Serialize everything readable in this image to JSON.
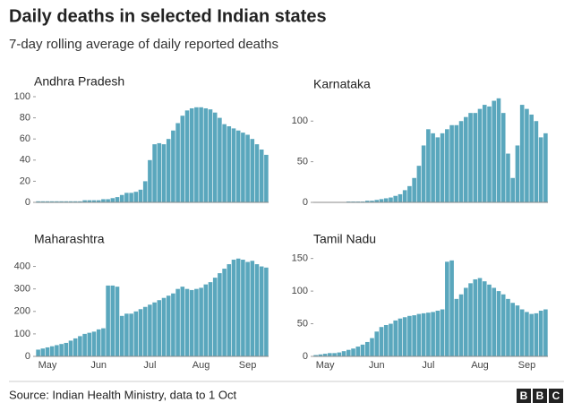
{
  "title": "Daily deaths in selected Indian states",
  "subtitle": "7-day rolling average of daily reported deaths",
  "source": "Source: Indian Health Ministry, data to 1 Oct",
  "logo": [
    "B",
    "B",
    "C"
  ],
  "chart_data": [
    {
      "type": "bar",
      "title": "Andhra Pradesh",
      "color": "#5aa7bd",
      "values": [
        1,
        1,
        1,
        1,
        1,
        1,
        1,
        1,
        1,
        1,
        2,
        2,
        2,
        2,
        3,
        3,
        4,
        5,
        7,
        9,
        9,
        10,
        12,
        20,
        40,
        55,
        56,
        55,
        60,
        68,
        75,
        82,
        87,
        89,
        90,
        90,
        89,
        88,
        85,
        80,
        74,
        72,
        70,
        68,
        66,
        64,
        60,
        55,
        50,
        45
      ],
      "ylim": [
        0,
        100
      ],
      "yticks": [
        0,
        20,
        40,
        60,
        80,
        100
      ]
    },
    {
      "type": "bar",
      "title": "Karnataka",
      "color": "#5aa7bd",
      "values": [
        0,
        0,
        0,
        0,
        0,
        0,
        0,
        1,
        1,
        1,
        1,
        2,
        2,
        3,
        4,
        5,
        6,
        8,
        10,
        15,
        20,
        30,
        45,
        70,
        90,
        85,
        80,
        85,
        90,
        95,
        95,
        100,
        105,
        110,
        110,
        115,
        120,
        118,
        125,
        128,
        110,
        60,
        30,
        70,
        120,
        115,
        108,
        100,
        80,
        85
      ],
      "ylim": [
        0,
        130
      ],
      "yticks": [
        0,
        50,
        100
      ]
    },
    {
      "type": "bar",
      "title": "Maharashtra",
      "color": "#5aa7bd",
      "categories": [
        null,
        null,
        "May",
        null,
        null,
        null,
        null,
        null,
        null,
        null,
        null,
        null,
        null,
        "Jun",
        null,
        null,
        null,
        null,
        null,
        null,
        null,
        null,
        null,
        null,
        "Jul",
        null,
        null,
        null,
        null,
        null,
        null,
        null,
        null,
        null,
        null,
        "Aug",
        null,
        null,
        null,
        null,
        null,
        null,
        null,
        null,
        null,
        "Sep",
        null,
        null,
        null,
        null
      ],
      "values": [
        30,
        35,
        40,
        45,
        50,
        55,
        60,
        70,
        80,
        90,
        100,
        105,
        110,
        120,
        125,
        315,
        315,
        310,
        180,
        190,
        190,
        200,
        210,
        220,
        230,
        240,
        250,
        260,
        270,
        280,
        300,
        310,
        300,
        295,
        300,
        305,
        320,
        330,
        350,
        370,
        390,
        410,
        430,
        435,
        430,
        420,
        425,
        410,
        400,
        395
      ],
      "ylim": [
        0,
        450
      ],
      "yticks": [
        0,
        100,
        200,
        300,
        400
      ]
    },
    {
      "type": "bar",
      "title": "Tamil Nadu",
      "color": "#5aa7bd",
      "categories": [
        null,
        null,
        "May",
        null,
        null,
        null,
        null,
        null,
        null,
        null,
        null,
        null,
        null,
        "Jun",
        null,
        null,
        null,
        null,
        null,
        null,
        null,
        null,
        null,
        null,
        "Jul",
        null,
        null,
        null,
        null,
        null,
        null,
        null,
        null,
        null,
        null,
        "Aug",
        null,
        null,
        null,
        null,
        null,
        null,
        null,
        null,
        null,
        "Sep",
        null,
        null,
        null,
        null
      ],
      "values": [
        2,
        3,
        4,
        5,
        5,
        6,
        8,
        10,
        12,
        15,
        18,
        22,
        28,
        38,
        45,
        48,
        50,
        55,
        58,
        60,
        62,
        63,
        65,
        66,
        67,
        68,
        70,
        72,
        145,
        147,
        88,
        95,
        105,
        112,
        118,
        120,
        115,
        110,
        105,
        100,
        95,
        88,
        82,
        78,
        72,
        68,
        65,
        66,
        70,
        72
      ],
      "ylim": [
        0,
        155
      ],
      "yticks": [
        0,
        50,
        100,
        150
      ]
    }
  ]
}
